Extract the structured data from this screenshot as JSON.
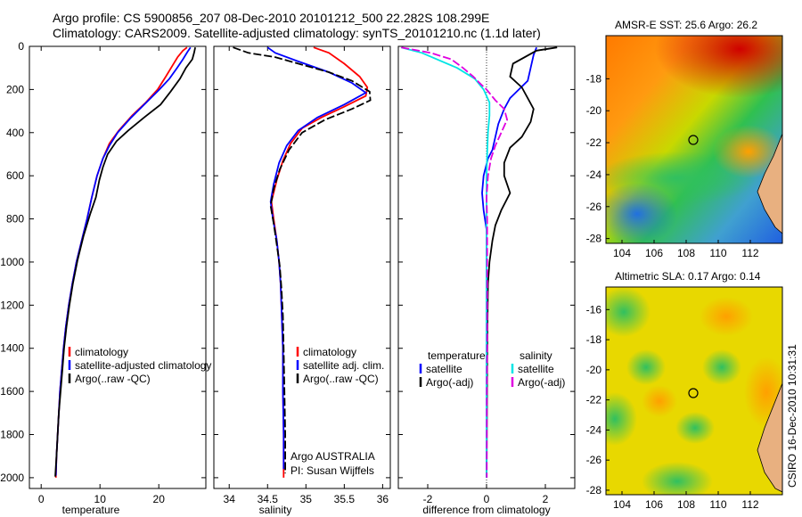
{
  "title_line1": "Argo profile: CS 5900856_207 08-Dec-2010 20101212_500 22.282S 108.299E",
  "title_line2": "Climatology: CARS2009. Satellite-adjusted climatology: synTS_20101210.nc (1.1d later)",
  "side_stamp": "CSIRO 16-Dec-2010 10:31:31",
  "colors": {
    "climatology": "#ff0000",
    "satellite": "#0000ff",
    "argo": "#000000",
    "sal_satellite": "#00e5e5",
    "sal_argo": "#e000e0"
  },
  "chart_data": [
    {
      "type": "line",
      "id": "temperature",
      "xlabel": "temperature",
      "ylabel": "",
      "xlim": [
        -2,
        28
      ],
      "ylim": [
        2050,
        0
      ],
      "xticks": [
        0,
        10,
        20
      ],
      "yticks": [
        0,
        200,
        400,
        600,
        800,
        1000,
        1200,
        1400,
        1600,
        1800,
        2000
      ],
      "legend": [
        "climatology",
        "satellite-adjusted climatology",
        "Argo(..raw -QC)"
      ],
      "legend_position": "lower-right",
      "series": [
        {
          "name": "climatology",
          "color": "#ff0000",
          "dashed": false,
          "points": [
            [
              24.8,
              5
            ],
            [
              24.1,
              20
            ],
            [
              23.2,
              50
            ],
            [
              22.3,
              90
            ],
            [
              21.2,
              140
            ],
            [
              19.8,
              200
            ],
            [
              17.8,
              260
            ],
            [
              15.5,
              320
            ],
            [
              13.2,
              390
            ],
            [
              11.6,
              450
            ],
            [
              10.5,
              520
            ],
            [
              9.5,
              600
            ],
            [
              8.6,
              700
            ],
            [
              7.8,
              800
            ],
            [
              6.9,
              900
            ],
            [
              6.0,
              1000
            ],
            [
              5.3,
              1100
            ],
            [
              4.7,
              1200
            ],
            [
              4.2,
              1300
            ],
            [
              3.8,
              1400
            ],
            [
              3.5,
              1500
            ],
            [
              3.2,
              1600
            ],
            [
              3.0,
              1700
            ],
            [
              2.8,
              1800
            ],
            [
              2.6,
              1900
            ],
            [
              2.5,
              2000
            ]
          ]
        },
        {
          "name": "satellite-adjusted climatology",
          "color": "#0000ff",
          "dashed": false,
          "points": [
            [
              25.4,
              5
            ],
            [
              24.9,
              25
            ],
            [
              24.1,
              60
            ],
            [
              23.1,
              100
            ],
            [
              21.8,
              150
            ],
            [
              20.1,
              200
            ],
            [
              17.9,
              260
            ],
            [
              15.3,
              330
            ],
            [
              13.0,
              400
            ],
            [
              11.6,
              460
            ],
            [
              10.5,
              520
            ],
            [
              9.5,
              600
            ],
            [
              8.6,
              700
            ],
            [
              7.8,
              800
            ],
            [
              6.9,
              900
            ],
            [
              6.0,
              1000
            ],
            [
              5.3,
              1100
            ],
            [
              4.7,
              1200
            ],
            [
              4.2,
              1300
            ],
            [
              3.8,
              1400
            ],
            [
              3.5,
              1500
            ],
            [
              3.2,
              1600
            ],
            [
              3.0,
              1700
            ],
            [
              2.8,
              1800
            ],
            [
              2.6,
              1900
            ],
            [
              2.5,
              1990
            ]
          ]
        },
        {
          "name": "Argo(..raw -QC)",
          "color": "#000000",
          "dashed": false,
          "points": [
            [
              26.2,
              5
            ],
            [
              26.0,
              30
            ],
            [
              25.7,
              60
            ],
            [
              24.6,
              100
            ],
            [
              23.6,
              150
            ],
            [
              22.0,
              210
            ],
            [
              20.3,
              270
            ],
            [
              17.5,
              330
            ],
            [
              14.8,
              390
            ],
            [
              12.8,
              440
            ],
            [
              11.3,
              500
            ],
            [
              10.5,
              560
            ],
            [
              9.9,
              620
            ],
            [
              9.3,
              700
            ],
            [
              8.3,
              780
            ],
            [
              7.2,
              880
            ],
            [
              6.2,
              990
            ],
            [
              5.4,
              1100
            ],
            [
              4.8,
              1200
            ],
            [
              4.3,
              1300
            ],
            [
              3.9,
              1400
            ],
            [
              3.6,
              1500
            ],
            [
              3.3,
              1600
            ],
            [
              3.0,
              1700
            ],
            [
              2.8,
              1800
            ],
            [
              2.6,
              1900
            ],
            [
              2.4,
              1995
            ]
          ]
        }
      ]
    },
    {
      "type": "line",
      "id": "salinity",
      "xlabel": "salinity",
      "ylabel": "",
      "xlim": [
        33.8,
        36.1
      ],
      "ylim": [
        2050,
        0
      ],
      "xticks": [
        34,
        34.5,
        35,
        35.5,
        36
      ],
      "yticks": [],
      "legend": [
        "climatology",
        "satellite adj. clim.",
        "Argo(..raw -QC)"
      ],
      "legend_position": "lower-right",
      "annotation": [
        "Argo AUSTRALIA",
        "PI: Susan Wijffels"
      ],
      "series": [
        {
          "name": "climatology",
          "color": "#ff0000",
          "dashed": false,
          "points": [
            [
              35.1,
              5
            ],
            [
              35.3,
              30
            ],
            [
              35.5,
              80
            ],
            [
              35.7,
              140
            ],
            [
              35.8,
              190
            ],
            [
              35.78,
              230
            ],
            [
              35.5,
              280
            ],
            [
              35.2,
              330
            ],
            [
              34.95,
              380
            ],
            [
              34.8,
              450
            ],
            [
              34.7,
              530
            ],
            [
              34.62,
              620
            ],
            [
              34.55,
              720
            ],
            [
              34.58,
              800
            ],
            [
              34.62,
              900
            ],
            [
              34.65,
              1000
            ],
            [
              34.67,
              1100
            ],
            [
              34.68,
              1200
            ],
            [
              34.69,
              1300
            ],
            [
              34.7,
              1400
            ],
            [
              34.7,
              1600
            ],
            [
              34.71,
              1800
            ],
            [
              34.71,
              2000
            ]
          ]
        },
        {
          "name": "satellite adj. clim.",
          "color": "#0000ff",
          "dashed": false,
          "points": [
            [
              34.5,
              5
            ],
            [
              34.6,
              30
            ],
            [
              34.9,
              70
            ],
            [
              35.3,
              120
            ],
            [
              35.6,
              170
            ],
            [
              35.78,
              215
            ],
            [
              35.5,
              270
            ],
            [
              35.15,
              330
            ],
            [
              34.9,
              390
            ],
            [
              34.75,
              460
            ],
            [
              34.65,
              540
            ],
            [
              34.58,
              640
            ],
            [
              34.54,
              720
            ],
            [
              34.57,
              800
            ],
            [
              34.62,
              900
            ],
            [
              34.65,
              1000
            ],
            [
              34.67,
              1100
            ],
            [
              34.68,
              1200
            ],
            [
              34.69,
              1300
            ],
            [
              34.7,
              1400
            ],
            [
              34.7,
              1600
            ],
            [
              34.71,
              1800
            ],
            [
              34.71,
              1960
            ]
          ]
        },
        {
          "name": "Argo(..raw -QC)",
          "color": "#000000",
          "dashed": true,
          "points": [
            [
              34.05,
              5
            ],
            [
              34.25,
              30
            ],
            [
              34.6,
              50
            ],
            [
              34.9,
              80
            ],
            [
              35.3,
              120
            ],
            [
              35.6,
              160
            ],
            [
              35.83,
              210
            ],
            [
              35.84,
              250
            ],
            [
              35.6,
              290
            ],
            [
              35.25,
              340
            ],
            [
              34.95,
              400
            ],
            [
              34.78,
              480
            ],
            [
              34.66,
              570
            ],
            [
              34.58,
              660
            ],
            [
              34.54,
              740
            ],
            [
              34.58,
              820
            ],
            [
              34.62,
              920
            ],
            [
              34.66,
              1020
            ],
            [
              34.68,
              1120
            ],
            [
              34.7,
              1250
            ],
            [
              34.71,
              1400
            ],
            [
              34.72,
              1600
            ],
            [
              34.73,
              1800
            ],
            [
              34.73,
              1980
            ]
          ]
        }
      ]
    },
    {
      "type": "line",
      "id": "difference",
      "xlabel": "difference from climatology",
      "ylabel": "",
      "xlim": [
        -3,
        3
      ],
      "ylim": [
        2050,
        0
      ],
      "xticks": [
        -2,
        0,
        2
      ],
      "yticks": [],
      "legend": [
        "temperature",
        "satellite",
        "Argo(-adj)",
        "salinity",
        "satellite",
        "Argo(-adj)"
      ],
      "legend_position": "lower-center",
      "series": [
        {
          "name": "temperature satellite",
          "color": "#0000ff",
          "dashed": false,
          "points": [
            [
              1.7,
              5
            ],
            [
              1.6,
              40
            ],
            [
              1.5,
              100
            ],
            [
              1.4,
              160
            ],
            [
              1.1,
              200
            ],
            [
              0.8,
              240
            ],
            [
              0.6,
              290
            ],
            [
              0.4,
              360
            ],
            [
              0.3,
              420
            ],
            [
              0.2,
              480
            ],
            [
              0.05,
              520
            ],
            [
              -0.1,
              600
            ],
            [
              -0.15,
              680
            ],
            [
              -0.1,
              760
            ],
            [
              0,
              850
            ],
            [
              0,
              1000
            ],
            [
              0,
              2000
            ]
          ]
        },
        {
          "name": "temperature Argo(-adj)",
          "color": "#000000",
          "dashed": false,
          "points": [
            [
              2.4,
              5
            ],
            [
              1.7,
              20
            ],
            [
              0.9,
              80
            ],
            [
              0.8,
              140
            ],
            [
              1.2,
              190
            ],
            [
              1.4,
              240
            ],
            [
              1.6,
              290
            ],
            [
              1.5,
              350
            ],
            [
              1.2,
              420
            ],
            [
              0.8,
              470
            ],
            [
              0.6,
              540
            ],
            [
              0.6,
              600
            ],
            [
              0.8,
              680
            ],
            [
              0.5,
              760
            ],
            [
              0.3,
              830
            ],
            [
              0.2,
              900
            ],
            [
              0.1,
              1000
            ],
            [
              0.05,
              1100
            ],
            [
              0.03,
              1300
            ],
            [
              0.02,
              1500
            ],
            [
              0.01,
              1800
            ],
            [
              0,
              2000
            ]
          ]
        },
        {
          "name": "salinity satellite",
          "color": "#00e5e5",
          "dashed": false,
          "points": [
            [
              -2.9,
              5
            ],
            [
              -2.2,
              30
            ],
            [
              -1.0,
              100
            ],
            [
              -0.4,
              150
            ],
            [
              -0.1,
              200
            ],
            [
              0.1,
              260
            ],
            [
              0.1,
              320
            ],
            [
              0.05,
              400
            ],
            [
              0.02,
              500
            ],
            [
              0,
              600
            ],
            [
              0,
              700
            ],
            [
              0,
              2000
            ]
          ]
        },
        {
          "name": "salinity Argo(-adj)",
          "color": "#e000e0",
          "dashed": true,
          "points": [
            [
              -2.9,
              5
            ],
            [
              -1.9,
              30
            ],
            [
              -1.2,
              60
            ],
            [
              -0.8,
              100
            ],
            [
              -0.45,
              140
            ],
            [
              -0.2,
              175
            ],
            [
              0.0,
              200
            ],
            [
              0.3,
              250
            ],
            [
              0.6,
              290
            ],
            [
              0.7,
              340
            ],
            [
              0.5,
              400
            ],
            [
              0.3,
              460
            ],
            [
              0.15,
              520
            ],
            [
              0.05,
              600
            ],
            [
              0,
              700
            ],
            [
              0.02,
              800
            ],
            [
              0.02,
              900
            ],
            [
              0.02,
              1000
            ],
            [
              0.02,
              1200
            ],
            [
              0.02,
              1400
            ],
            [
              0.01,
              1600
            ],
            [
              0.01,
              1800
            ],
            [
              0.01,
              2000
            ]
          ]
        }
      ]
    },
    {
      "type": "heatmap",
      "id": "amsr-sst",
      "title": "AMSR-E SST: 25.6 Argo: 26.2",
      "xlim": [
        103,
        114
      ],
      "ylim": [
        -28.3,
        -15.3
      ],
      "xticks": [
        104,
        106,
        108,
        110,
        112
      ],
      "yticks": [
        -28,
        -26,
        -24,
        -22,
        -20,
        -18
      ],
      "argo_position": [
        108.299,
        -22.282
      ]
    },
    {
      "type": "heatmap",
      "id": "altimetric-sla",
      "title": "Altimetric SLA: 0.17 Argo: 0.14",
      "xlim": [
        103,
        114
      ],
      "ylim": [
        -28.3,
        -14.5
      ],
      "xticks": [
        104,
        106,
        108,
        110,
        112
      ],
      "yticks": [
        -28,
        -26,
        -24,
        -22,
        -20,
        -18,
        -16
      ],
      "argo_position": [
        108.299,
        -22.282
      ]
    }
  ]
}
